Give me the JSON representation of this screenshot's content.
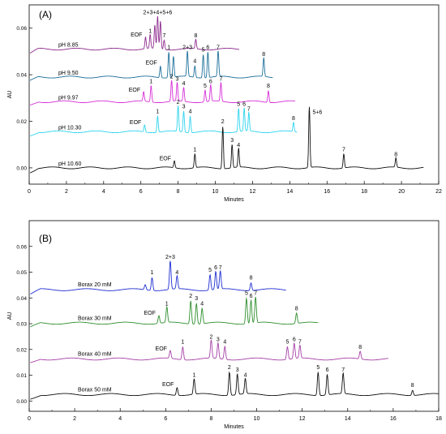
{
  "chart_data": [
    {
      "panel_label": "(A)",
      "type": "line",
      "xlabel": "Minutes",
      "ylabel": "AU",
      "xlim": [
        0,
        22
      ],
      "ylim": [
        -0.007,
        0.07
      ],
      "xticks": [
        0,
        2,
        4,
        6,
        8,
        10,
        12,
        14,
        16,
        18,
        20,
        22
      ],
      "yticks": [
        0.0,
        0.02,
        0.04,
        0.06
      ],
      "ytick_labels": [
        "0.00",
        "0.02",
        "0.04",
        "0.06"
      ],
      "series": [
        {
          "name": "pH 8.85",
          "color": "#8e2c8e",
          "baseline": 0.051,
          "x_end": 11.3,
          "peaks": [
            {
              "x": 6.25,
              "h": 0.005,
              "label": "EOF"
            },
            {
              "x": 6.5,
              "h": 0.006,
              "label": "1"
            },
            {
              "x": 6.75,
              "h": 0.01
            },
            {
              "x": 6.9,
              "h": 0.014,
              "label": "2+3+4+5+6"
            },
            {
              "x": 7.05,
              "h": 0.012
            },
            {
              "x": 7.25,
              "h": 0.004,
              "label": "7"
            },
            {
              "x": 8.95,
              "h": 0.004,
              "label": "8"
            }
          ]
        },
        {
          "name": "pH 9.50",
          "color": "#1d6f9a",
          "baseline": 0.039,
          "x_end": 13.1,
          "peaks": [
            {
              "x": 7.05,
              "h": 0.005,
              "label": "EOF"
            },
            {
              "x": 7.5,
              "h": 0.011,
              "label": "1"
            },
            {
              "x": 7.75,
              "h": 0.009
            },
            {
              "x": 8.5,
              "h": 0.011,
              "label": "2+3"
            },
            {
              "x": 8.9,
              "h": 0.005,
              "label": "4"
            },
            {
              "x": 9.35,
              "h": 0.01,
              "label": "5"
            },
            {
              "x": 9.6,
              "h": 0.011,
              "label": "6"
            },
            {
              "x": 10.15,
              "h": 0.011,
              "label": "7"
            },
            {
              "x": 12.6,
              "h": 0.008,
              "label": "8"
            }
          ]
        },
        {
          "name": "pH 9.97",
          "color": "#d62fd6",
          "baseline": 0.0284,
          "x_end": 14.3,
          "peaks": [
            {
              "x": 6.15,
              "h": 0.004,
              "label": "EOF"
            },
            {
              "x": 6.55,
              "h": 0.007,
              "label": "1"
            },
            {
              "x": 7.65,
              "h": 0.009,
              "label": "2"
            },
            {
              "x": 7.95,
              "h": 0.008,
              "label": "3"
            },
            {
              "x": 8.3,
              "h": 0.006,
              "label": "4"
            },
            {
              "x": 9.45,
              "h": 0.005,
              "label": "5"
            },
            {
              "x": 9.75,
              "h": 0.007,
              "label": "6"
            },
            {
              "x": 10.3,
              "h": 0.008,
              "label": "7"
            },
            {
              "x": 12.85,
              "h": 0.005,
              "label": "8"
            }
          ]
        },
        {
          "name": "pH 10.30",
          "color": "#2ed4ee",
          "baseline": 0.0155,
          "x_end": 14.4,
          "peaks": [
            {
              "x": 6.2,
              "h": 0.003,
              "label": "EOF"
            },
            {
              "x": 6.9,
              "h": 0.007,
              "label": "1"
            },
            {
              "x": 8.0,
              "h": 0.011,
              "label": "2"
            },
            {
              "x": 8.3,
              "h": 0.009,
              "label": "3"
            },
            {
              "x": 8.65,
              "h": 0.007,
              "label": "4"
            },
            {
              "x": 11.25,
              "h": 0.01,
              "label": "5"
            },
            {
              "x": 11.55,
              "h": 0.01,
              "label": "6"
            },
            {
              "x": 11.8,
              "h": 0.008,
              "label": "7"
            },
            {
              "x": 14.2,
              "h": 0.004,
              "label": "8"
            }
          ]
        },
        {
          "name": "pH 10.60",
          "color": "#111111",
          "baseline": 0.0,
          "x_end": 21.2,
          "peaks": [
            {
              "x": 7.8,
              "h": 0.003,
              "label": "EOF"
            },
            {
              "x": 8.9,
              "h": 0.006,
              "label": "1"
            },
            {
              "x": 10.4,
              "h": 0.018,
              "label": "2"
            },
            {
              "x": 10.9,
              "h": 0.01,
              "label": "3"
            },
            {
              "x": 11.25,
              "h": 0.008,
              "label": "4"
            },
            {
              "x": 15.05,
              "h": 0.026,
              "label": "5+6"
            },
            {
              "x": 16.9,
              "h": 0.006,
              "label": "7"
            },
            {
              "x": 19.7,
              "h": 0.004,
              "label": "8"
            }
          ]
        }
      ]
    },
    {
      "panel_label": "(B)",
      "type": "line",
      "xlabel": "Minutes",
      "ylabel": "AU",
      "xlim": [
        0,
        18
      ],
      "ylim": [
        -0.004,
        0.07
      ],
      "xticks": [
        0,
        2,
        4,
        6,
        8,
        10,
        12,
        14,
        16,
        18
      ],
      "yticks": [
        0.0,
        0.01,
        0.02,
        0.03,
        0.04,
        0.05,
        0.06
      ],
      "ytick_labels": [
        "0.00",
        "0.01",
        "0.02",
        "0.03",
        "0.04",
        "0.05",
        "0.06"
      ],
      "series": [
        {
          "name": "Borax 20 mM",
          "color": "#1f2fd0",
          "baseline": 0.0432,
          "x_end": 11.3,
          "peaks": [
            {
              "x": 5.1,
              "h": 0.002
            },
            {
              "x": 5.4,
              "h": 0.005,
              "label": "1"
            },
            {
              "x": 6.2,
              "h": 0.011,
              "label": "2+3"
            },
            {
              "x": 6.5,
              "h": 0.005,
              "label": "4"
            },
            {
              "x": 7.95,
              "h": 0.006,
              "label": "5"
            },
            {
              "x": 8.2,
              "h": 0.007,
              "label": "6"
            },
            {
              "x": 8.4,
              "h": 0.007,
              "label": "7"
            },
            {
              "x": 9.75,
              "h": 0.003,
              "label": "8"
            }
          ]
        },
        {
          "name": "Borax 30 mM",
          "color": "#2f8f2f",
          "baseline": 0.0302,
          "x_end": 12.7,
          "peaks": [
            {
              "x": 5.7,
              "h": 0.003,
              "label": "EOF"
            },
            {
              "x": 6.05,
              "h": 0.006,
              "label": "1"
            },
            {
              "x": 7.1,
              "h": 0.009,
              "label": "2"
            },
            {
              "x": 7.35,
              "h": 0.008,
              "label": "3"
            },
            {
              "x": 7.6,
              "h": 0.006,
              "label": "4"
            },
            {
              "x": 9.55,
              "h": 0.01,
              "label": "5"
            },
            {
              "x": 9.75,
              "h": 0.009,
              "label": "6"
            },
            {
              "x": 9.95,
              "h": 0.01,
              "label": "7"
            },
            {
              "x": 11.75,
              "h": 0.004,
              "label": "8"
            }
          ]
        },
        {
          "name": "Borax 40 mM",
          "color": "#a640a6",
          "baseline": 0.0163,
          "x_end": 15.8,
          "peaks": [
            {
              "x": 6.2,
              "h": 0.003,
              "label": "EOF"
            },
            {
              "x": 6.75,
              "h": 0.005,
              "label": "1"
            },
            {
              "x": 8.0,
              "h": 0.007,
              "label": "2"
            },
            {
              "x": 8.3,
              "h": 0.006,
              "label": "3"
            },
            {
              "x": 8.6,
              "h": 0.005,
              "label": "4"
            },
            {
              "x": 11.35,
              "h": 0.005,
              "label": "5"
            },
            {
              "x": 11.65,
              "h": 0.006,
              "label": "6"
            },
            {
              "x": 11.9,
              "h": 0.005,
              "label": "7"
            },
            {
              "x": 14.55,
              "h": 0.003,
              "label": "8"
            }
          ]
        },
        {
          "name": "Borax 50 mM",
          "color": "#111111",
          "baseline": 0.0025,
          "x_end": 18.0,
          "peaks": [
            {
              "x": 6.5,
              "h": 0.003,
              "label": "EOF"
            },
            {
              "x": 7.25,
              "h": 0.006,
              "label": "1"
            },
            {
              "x": 8.8,
              "h": 0.009,
              "label": "2"
            },
            {
              "x": 9.15,
              "h": 0.008,
              "label": "3"
            },
            {
              "x": 9.5,
              "h": 0.006,
              "label": "4"
            },
            {
              "x": 12.7,
              "h": 0.009,
              "label": "5"
            },
            {
              "x": 13.1,
              "h": 0.008,
              "label": "6"
            },
            {
              "x": 13.8,
              "h": 0.008,
              "label": "7"
            },
            {
              "x": 16.85,
              "h": 0.002,
              "label": "8"
            }
          ]
        }
      ]
    }
  ]
}
